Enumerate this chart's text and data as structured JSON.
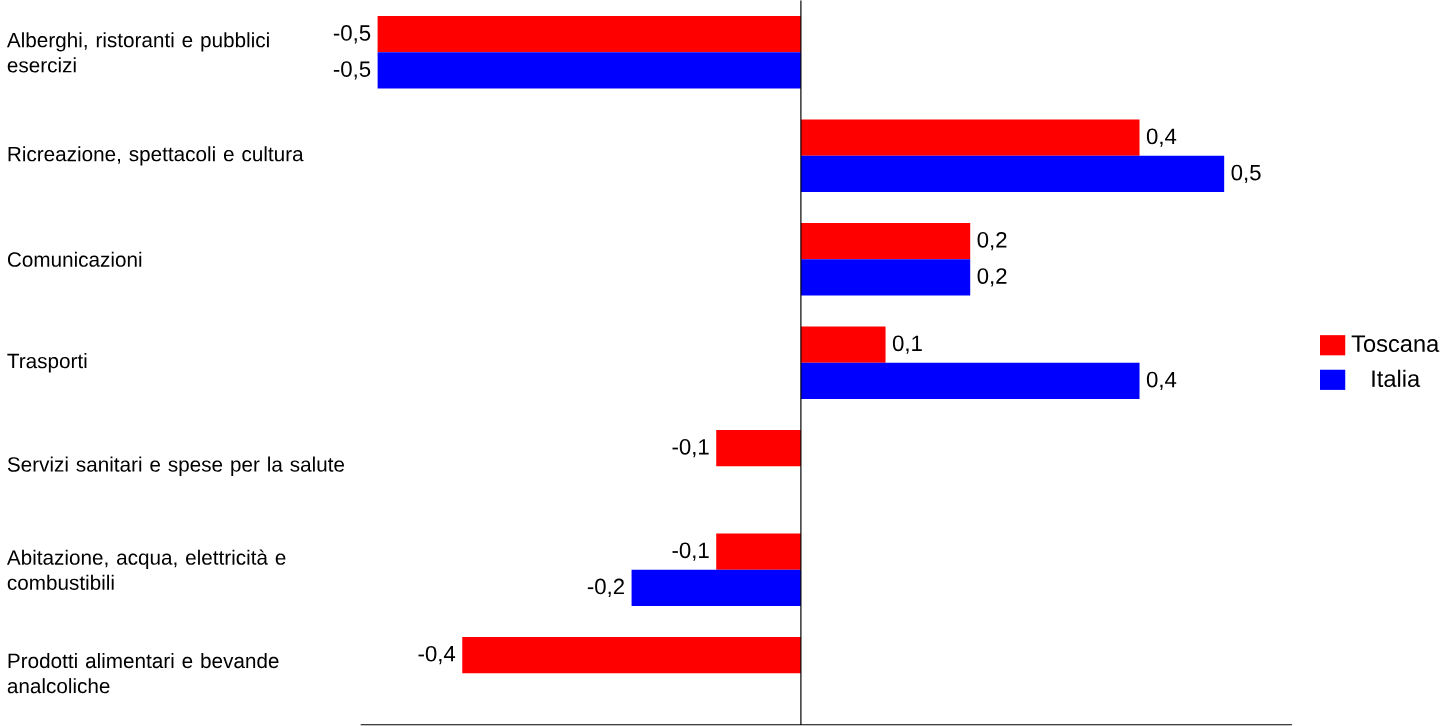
{
  "chart_data": {
    "type": "bar",
    "orientation": "horizontal",
    "categories": [
      "Alberghi, ristoranti e pubblici esercizi",
      "Ricreazione, spettacoli e cultura",
      "Comunicazioni",
      "Trasporti",
      "Servizi sanitari e spese per la salute",
      "Abitazione, acqua, elettricità e combustibili",
      "Prodotti alimentari e bevande analcoliche"
    ],
    "series": [
      {
        "name": "Toscana",
        "color": "#ff0000",
        "values": [
          -0.5,
          0.4,
          0.2,
          0.1,
          -0.1,
          -0.1,
          -0.4
        ],
        "value_labels": [
          "-0,5",
          "0,4",
          "0,2",
          "0,1",
          "-0,1",
          "-0,1",
          "-0,4"
        ]
      },
      {
        "name": "Italia",
        "color": "#0000ff",
        "values": [
          -0.5,
          0.5,
          0.2,
          0.4,
          0,
          -0.2,
          0
        ],
        "value_labels": [
          "-0,5",
          "0,5",
          "0,2",
          "0,4",
          null,
          "-0,2",
          null
        ]
      }
    ],
    "xlim": [
      -0.52,
      0.58
    ],
    "tick_labels": "y",
    "legend": "right",
    "grid": false
  }
}
